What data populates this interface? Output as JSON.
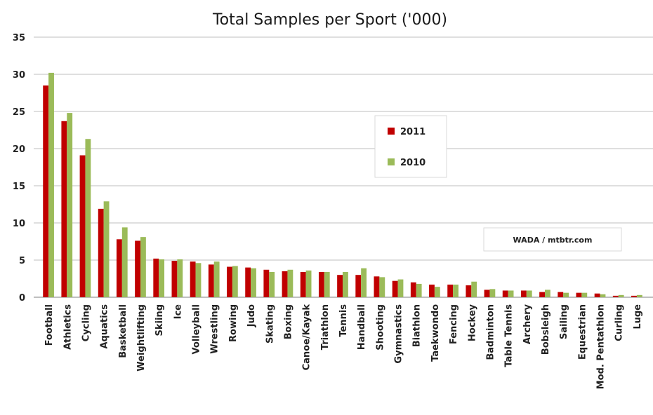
{
  "chart_data": {
    "type": "bar",
    "title": "Total Samples per Sport ('000)",
    "xlabel": "",
    "ylabel": "",
    "ylim": [
      0,
      35
    ],
    "yticks": [
      0,
      5,
      10,
      15,
      20,
      25,
      30,
      35
    ],
    "grid": "horizontal",
    "legend_position": "right",
    "categories": [
      "Football",
      "Athletics",
      "Cycling",
      "Aquatics",
      "Basketball",
      "Weightlifting",
      "Skiing",
      "Ice",
      "Volleyball",
      "Wrestling",
      "Rowing",
      "Judo",
      "Skating",
      "Boxing",
      "Canoe/Kayak",
      "Triathlon",
      "Tennis",
      "Handball",
      "Shooting",
      "Gymnastics",
      "Biathlon",
      "Taekwondo",
      "Fencing",
      "Hockey",
      "Badminton",
      "Table Tennis",
      "Archery",
      "Bobsleigh",
      "Sailing",
      "Equestrian",
      "Mod. Pentathlon",
      "Curling",
      "Luge"
    ],
    "series": [
      {
        "name": "2011",
        "color": "#c00000",
        "values": [
          28.5,
          23.7,
          19.1,
          11.9,
          7.8,
          7.6,
          5.2,
          4.9,
          4.8,
          4.4,
          4.1,
          4.0,
          3.7,
          3.5,
          3.4,
          3.4,
          3.0,
          3.0,
          2.8,
          2.2,
          2.0,
          1.7,
          1.7,
          1.6,
          1.0,
          0.9,
          0.9,
          0.7,
          0.7,
          0.6,
          0.5,
          0.2,
          0.2
        ]
      },
      {
        "name": "2010",
        "color": "#9bbb59",
        "values": [
          30.2,
          24.8,
          21.3,
          12.9,
          9.4,
          8.1,
          5.1,
          5.1,
          4.6,
          4.8,
          4.2,
          3.9,
          3.4,
          3.7,
          3.6,
          3.4,
          3.4,
          3.9,
          2.7,
          2.4,
          1.8,
          1.4,
          1.7,
          2.1,
          1.1,
          0.9,
          0.9,
          1.0,
          0.6,
          0.6,
          0.4,
          0.3,
          0.3
        ]
      }
    ],
    "annotation": "WADA / mtbtr.com"
  },
  "colors": {
    "grid": "#bfbfbf",
    "axis": "#7f7f7f",
    "series_2011": "#c00000",
    "series_2010": "#9bbb59"
  }
}
